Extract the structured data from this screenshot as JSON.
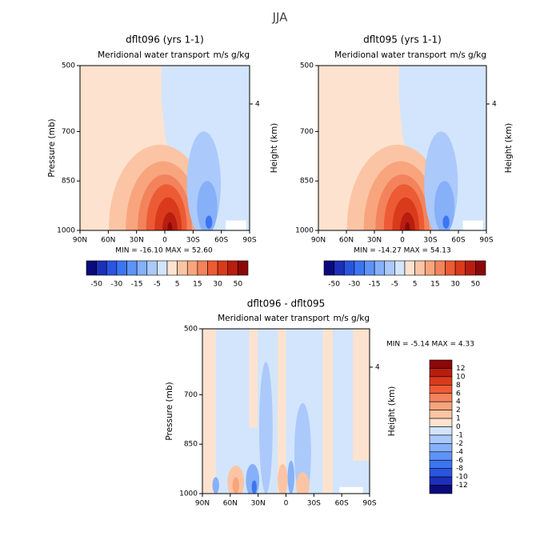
{
  "title": "JJA",
  "chart_data": [
    {
      "type": "contour",
      "title": "dflt096 (yrs 1-1)",
      "subtitle": "Meridional water transport",
      "units": "m/s g/kg",
      "ylabel": "Pressure (mb)",
      "y2label": "Height (km)",
      "stats": "MIN = -16.10   MAX =  52.60",
      "ylim": [
        500,
        1000
      ],
      "yticks": [
        500,
        700,
        850,
        1000
      ],
      "y2ticks": [
        4
      ],
      "xlim": [
        90,
        -90
      ],
      "xticks": [
        {
          "value": 90,
          "label": "90N"
        },
        {
          "value": 60,
          "label": "60N"
        },
        {
          "value": 30,
          "label": "30N"
        },
        0,
        {
          "value": -30,
          "label": "30S"
        },
        {
          "value": -60,
          "label": "60S"
        },
        {
          "value": -90,
          "label": "90S"
        }
      ],
      "colorbar": {
        "orientation": "horizontal",
        "colors": [
          "#0a0a7a",
          "#1c2fb8",
          "#2a55e0",
          "#3c75f2",
          "#5f93f6",
          "#86b0f8",
          "#abc9fa",
          "#d2e5fc",
          "#fde3cf",
          "#fbc5a5",
          "#f8a57e",
          "#f3835c",
          "#ec5b34",
          "#d93a1c",
          "#b81d10",
          "#8a0808"
        ],
        "labels": [
          -50,
          -30,
          -15,
          -5,
          5,
          15,
          30,
          50
        ]
      }
    },
    {
      "type": "contour",
      "title": "dflt095 (yrs 1-1)",
      "subtitle": "Meridional water transport",
      "units": "m/s g/kg",
      "y2label": "Height (km)",
      "stats": "MIN = -14.27   MAX =  54.13",
      "ylim": [
        500,
        1000
      ],
      "yticks": [
        500,
        700,
        850,
        1000
      ],
      "y2ticks": [
        4
      ],
      "xlim": [
        90,
        -90
      ],
      "xticks": [
        {
          "value": 90,
          "label": "90N"
        },
        {
          "value": 60,
          "label": "60N"
        },
        {
          "value": 30,
          "label": "30N"
        },
        0,
        {
          "value": -30,
          "label": "30S"
        },
        {
          "value": -60,
          "label": "60S"
        },
        {
          "value": -90,
          "label": "90S"
        }
      ],
      "colorbar": {
        "orientation": "horizontal",
        "colors": [
          "#0a0a7a",
          "#1c2fb8",
          "#2a55e0",
          "#3c75f2",
          "#5f93f6",
          "#86b0f8",
          "#abc9fa",
          "#d2e5fc",
          "#fde3cf",
          "#fbc5a5",
          "#f8a57e",
          "#f3835c",
          "#ec5b34",
          "#d93a1c",
          "#b81d10",
          "#8a0808"
        ],
        "labels": [
          -50,
          -30,
          -15,
          -5,
          5,
          15,
          30,
          50
        ]
      }
    },
    {
      "type": "contour",
      "title": "dflt096 - dflt095",
      "subtitle": "Meridional water transport",
      "units": "m/s g/kg",
      "ylabel": "Pressure (mb)",
      "y2label": "Height (km)",
      "stats": "MIN =   -5.14   MAX =   4.33",
      "ylim": [
        500,
        1000
      ],
      "yticks": [
        500,
        700,
        850,
        1000
      ],
      "y2ticks": [
        4
      ],
      "xlim": [
        90,
        -90
      ],
      "xticks": [
        {
          "value": 90,
          "label": "90N"
        },
        {
          "value": 60,
          "label": "60N"
        },
        {
          "value": 30,
          "label": "30N"
        },
        0,
        {
          "value": -30,
          "label": "30S"
        },
        {
          "value": -60,
          "label": "60S"
        },
        {
          "value": -90,
          "label": "90S"
        }
      ],
      "colorbar": {
        "orientation": "vertical",
        "colors": [
          "#8a0808",
          "#b81d10",
          "#d93a1c",
          "#ec5b34",
          "#f3835c",
          "#f8a57e",
          "#fbc5a5",
          "#fde3cf",
          "#d2e5fc",
          "#abc9fa",
          "#86b0f8",
          "#5f93f6",
          "#3c75f2",
          "#2a55e0",
          "#1c2fb8",
          "#0a0a7a"
        ],
        "labels": [
          12,
          10,
          8,
          6,
          4,
          2,
          1,
          0,
          -1,
          -2,
          -4,
          -6,
          -8,
          -10,
          -12
        ]
      }
    }
  ]
}
